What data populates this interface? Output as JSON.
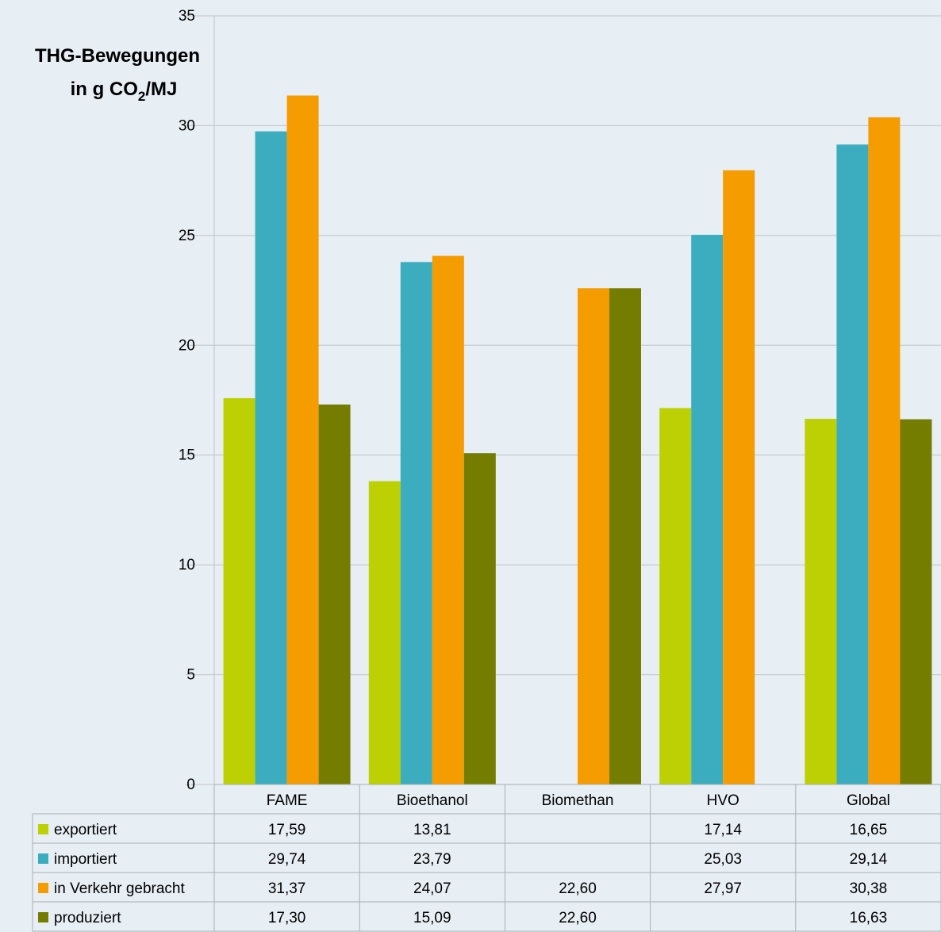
{
  "chart_data": {
    "type": "bar",
    "ylabel": {
      "line1": "THG-Bewegungen",
      "line2_prefix": "in g CO",
      "line2_sub": "2",
      "line2_suffix": "/MJ"
    },
    "ylim": [
      0,
      35
    ],
    "yticks": [
      "0",
      "5",
      "10",
      "15",
      "20",
      "25",
      "30",
      "35"
    ],
    "grid": true,
    "categories": [
      "FAME",
      "Bioethanol",
      "Biomethan",
      "HVO",
      "Global"
    ],
    "series": [
      {
        "name": "exportiert",
        "color": "#bcd003",
        "values": [
          17.59,
          13.81,
          null,
          17.14,
          16.65
        ],
        "labels": [
          "17,59",
          "13,81",
          "",
          "17,14",
          "16,65"
        ]
      },
      {
        "name": "importiert",
        "color": "#3badbf",
        "values": [
          29.74,
          23.79,
          null,
          25.03,
          29.14
        ],
        "labels": [
          "29,74",
          "23,79",
          "",
          "25,03",
          "29,14"
        ]
      },
      {
        "name": "in Verkehr gebracht",
        "color": "#f59c00",
        "values": [
          31.37,
          24.07,
          22.6,
          27.97,
          30.38
        ],
        "labels": [
          "31,37",
          "24,07",
          "22,60",
          "27,97",
          "30,38"
        ]
      },
      {
        "name": "produziert",
        "color": "#757d00",
        "values": [
          17.3,
          15.09,
          22.6,
          null,
          16.63
        ],
        "labels": [
          "17,30",
          "15,09",
          "22,60",
          "",
          "16,63"
        ]
      }
    ]
  },
  "colors": {
    "plot_background": "#e7eef4",
    "gridline": "#c0c4c6",
    "table_border": "#a9b0b5"
  }
}
